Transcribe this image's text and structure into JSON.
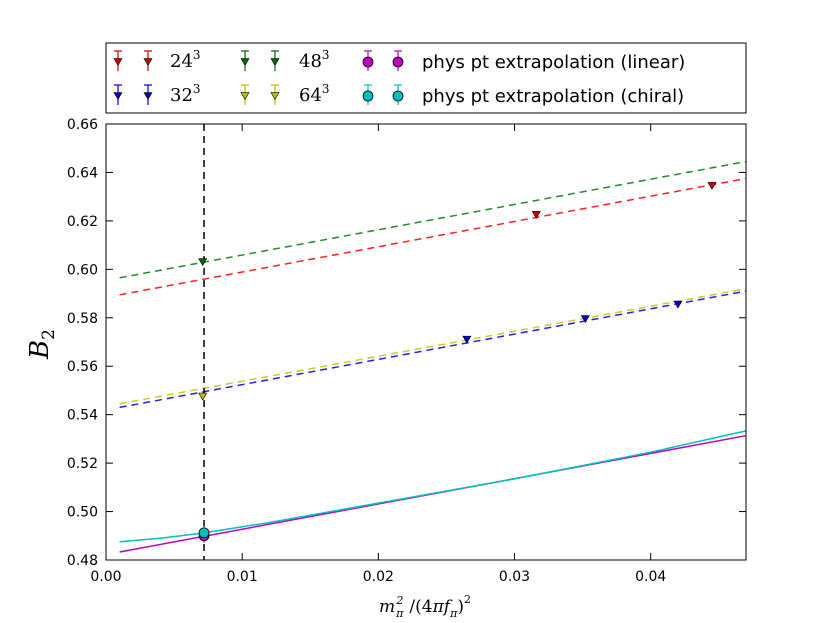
{
  "chart_data": {
    "type": "scatter",
    "xlabel": {
      "m": "m",
      "pi": "π",
      "sq": "2",
      "open": "/(4",
      "pi2": "π",
      "f": "f",
      "pi3": "π",
      "close": ")",
      "sq2": "2"
    },
    "ylabel": {
      "b": "B",
      "sub": "2"
    },
    "xlim": [
      0.0,
      0.047
    ],
    "ylim": [
      0.48,
      0.66
    ],
    "xticks": [
      "0.00",
      "0.01",
      "0.02",
      "0.03",
      "0.04"
    ],
    "xtick_values": [
      0.0,
      0.01,
      0.02,
      0.03,
      0.04
    ],
    "yticks": [
      "0.48",
      "0.50",
      "0.52",
      "0.54",
      "0.56",
      "0.58",
      "0.60",
      "0.62",
      "0.64",
      "0.66"
    ],
    "ytick_values": [
      0.48,
      0.5,
      0.52,
      0.54,
      0.56,
      0.58,
      0.6,
      0.62,
      0.64,
      0.66
    ],
    "vline_x": 0.0072,
    "series": [
      {
        "name": "24",
        "exp": "3",
        "color": "#cc0000",
        "line_color": "#ff2020",
        "marker": "triangle-down",
        "points": [
          {
            "x": 0.0316,
            "y": 0.6225
          },
          {
            "x": 0.0445,
            "y": 0.6345
          }
        ],
        "fit": [
          [
            0.001,
            0.5895
          ],
          [
            0.047,
            0.6375
          ]
        ]
      },
      {
        "name": "32",
        "exp": "3",
        "color": "#0000cc",
        "line_color": "#2020ee",
        "marker": "triangle-down",
        "points": [
          {
            "x": 0.0265,
            "y": 0.571
          },
          {
            "x": 0.0352,
            "y": 0.5795
          },
          {
            "x": 0.042,
            "y": 0.5855
          }
        ],
        "fit": [
          [
            0.001,
            0.543
          ],
          [
            0.047,
            0.591
          ]
        ]
      },
      {
        "name": "48",
        "exp": "3",
        "color": "#006400",
        "line_color": "#228b22",
        "marker": "triangle-down",
        "points": [
          {
            "x": 0.0071,
            "y": 0.603
          }
        ],
        "fit": [
          [
            0.001,
            0.5965
          ],
          [
            0.047,
            0.6445
          ]
        ]
      },
      {
        "name": "64",
        "exp": "3",
        "color": "#bbbb00",
        "line_color": "#cccc22",
        "marker": "triangle-down",
        "points": [
          {
            "x": 0.0071,
            "y": 0.5475
          }
        ],
        "fit": [
          [
            0.001,
            0.5445
          ],
          [
            0.047,
            0.592
          ]
        ]
      },
      {
        "name": "phys pt extrapolation (linear)",
        "color": "#bf00bf",
        "marker": "circle",
        "points": [
          {
            "x": 0.0072,
            "y": 0.49
          }
        ],
        "fit": [
          [
            0.001,
            0.4833
          ],
          [
            0.047,
            0.5313
          ]
        ]
      },
      {
        "name": "phys pt extrapolation (chiral)",
        "color": "#00bfbf",
        "marker": "circle",
        "points": [
          {
            "x": 0.0072,
            "y": 0.4912
          }
        ],
        "fit": [
          [
            0.001,
            0.4875
          ],
          [
            0.004,
            0.489
          ],
          [
            0.0072,
            0.4912
          ],
          [
            0.012,
            0.4955
          ],
          [
            0.02,
            0.5035
          ],
          [
            0.03,
            0.5135
          ],
          [
            0.04,
            0.5245
          ],
          [
            0.047,
            0.5333
          ]
        ]
      }
    ]
  }
}
